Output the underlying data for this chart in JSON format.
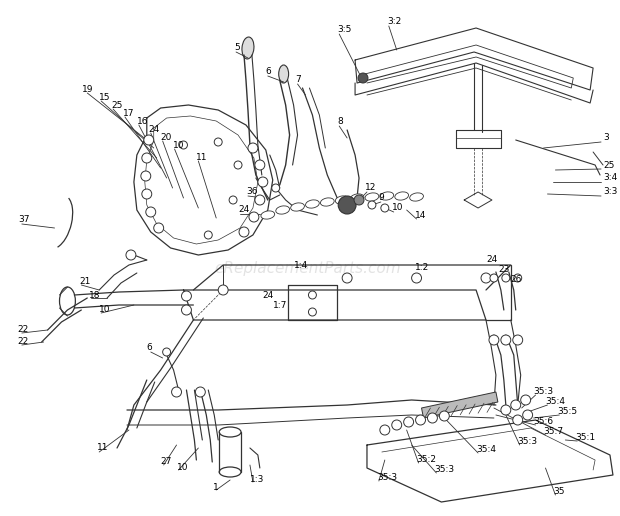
{
  "bg_color": "#ffffff",
  "line_color": "#333333",
  "watermark": "eReplacementParts.com",
  "watermark_color": "#cccccc",
  "fig_w": 6.2,
  "fig_h": 5.16,
  "dpi": 100
}
